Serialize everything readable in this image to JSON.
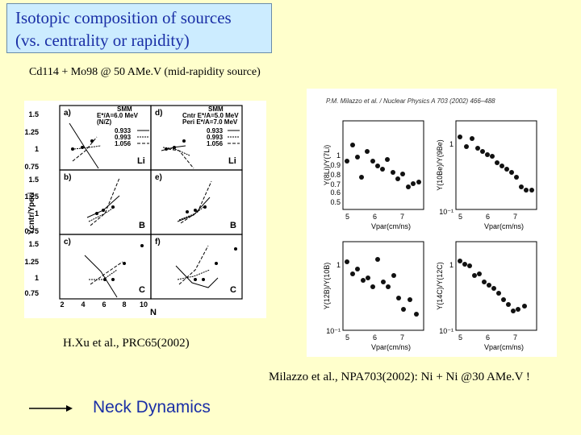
{
  "slide": {
    "title_line1": "Isotopic composition of sources",
    "title_line2": "(vs. centrality or rapidity)",
    "subtitle": "Cd114 + Mo98 @ 50 AMe.V (mid-rapidity source)",
    "citation_left": "H.Xu et al., PRC65(2002)",
    "citation_right": "Milazzo et al., NPA703(2002): Ni + Ni @30 AMe.V !",
    "conclusion": "Neck Dynamics"
  },
  "left_figure": {
    "ylabel": "Ycntr/Yperi",
    "xlabel": "N",
    "yticks": [
      "1.5",
      "1.25",
      "1",
      "0.75"
    ],
    "xticks": [
      "2",
      "4",
      "6",
      "8",
      "10"
    ],
    "legend_a": {
      "head": "SMM",
      "l1": "E*/A=6.0 MeV",
      "l2": "(N/Z)",
      "vals": [
        "0.933",
        "0.993",
        "1.056"
      ]
    },
    "legend_d": {
      "head": "SMM",
      "l1": "Cntr E*/A=5.0 MeV",
      "l2": "Peri E*/A=7.0 MeV",
      "vals": [
        "0.933",
        "0.993",
        "1.056"
      ]
    },
    "panels": [
      {
        "tag": "a)",
        "element": "Li"
      },
      {
        "tag": "d)",
        "element": "Li"
      },
      {
        "tag": "b)",
        "element": "B"
      },
      {
        "tag": "e)",
        "element": "B"
      },
      {
        "tag": "c)",
        "element": "C"
      },
      {
        "tag": "f)",
        "element": "C"
      }
    ]
  },
  "right_figure": {
    "header": "P.M. Milazzo et al. / Nuclear Physics A 703 (2002) 466–488",
    "xticks": [
      "5",
      "6",
      "7"
    ],
    "xlabel": "Vpar(cm/ns)",
    "panels": [
      {
        "ylabel": "Y(8Li)/Y(7Li)",
        "yticks": [
          "1",
          "0.9",
          "0.8",
          "0.7",
          "0.6",
          "0.5"
        ]
      },
      {
        "ylabel": "Y(10Be)/Y(9Be)",
        "yticks": [
          "1",
          "10⁻¹"
        ]
      },
      {
        "ylabel": "Y(12B)/Y(10B)",
        "yticks": [
          "1",
          "10⁻¹"
        ]
      },
      {
        "ylabel": "Y(14C)/Y(12C)",
        "yticks": [
          "1",
          "10⁻¹"
        ]
      }
    ]
  }
}
